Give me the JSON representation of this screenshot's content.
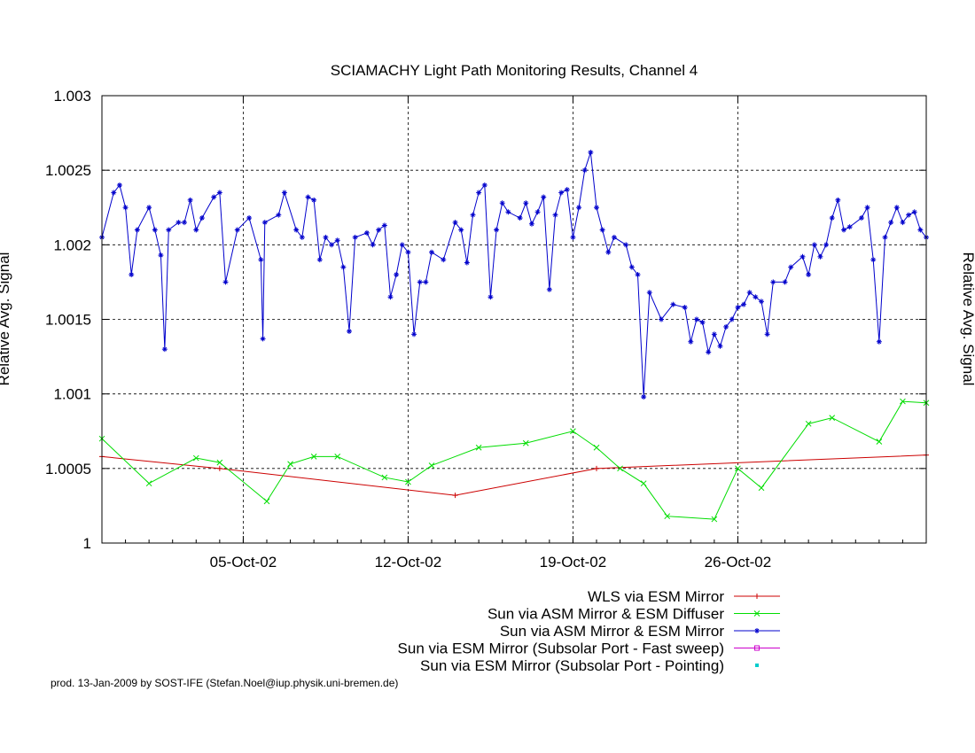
{
  "chart_data": {
    "type": "line",
    "title": "SCIAMACHY Light Path Monitoring Results, Channel 4",
    "ylabel_left": "Relative Avg. Signal",
    "ylabel_right": "Relative Avg. Signal",
    "ylim": [
      1.0,
      1.003
    ],
    "yticks": [
      {
        "value": 1.0,
        "label": "1"
      },
      {
        "value": 1.0005,
        "label": "1.0005"
      },
      {
        "value": 1.001,
        "label": "1.001"
      },
      {
        "value": 1.0015,
        "label": "1.0015"
      },
      {
        "value": 1.002,
        "label": "1.002"
      },
      {
        "value": 1.0025,
        "label": "1.0025"
      },
      {
        "value": 1.003,
        "label": "1.003"
      }
    ],
    "xlim": [
      "2002-09-29",
      "2002-11-03"
    ],
    "xticks": [
      {
        "date": "2002-10-05",
        "label": "05-Oct-02"
      },
      {
        "date": "2002-10-12",
        "label": "12-Oct-02"
      },
      {
        "date": "2002-10-19",
        "label": "19-Oct-02"
      },
      {
        "date": "2002-10-26",
        "label": "26-Oct-02"
      }
    ],
    "grid": true,
    "legend_position": "bottom-right",
    "series": [
      {
        "name": "WLS via ESM Mirror",
        "color": "#cc0000",
        "marker": "plus",
        "points": [
          [
            "2002-09-29",
            1.00058
          ],
          [
            "2002-10-04",
            1.0005
          ],
          [
            "2002-10-14",
            1.00032
          ],
          [
            "2002-10-20",
            1.0005
          ],
          [
            "2002-11-03",
            1.00059
          ]
        ]
      },
      {
        "name": "Sun via ASM Mirror & ESM Diffuser",
        "color": "#00dd00",
        "marker": "x",
        "points": [
          [
            "2002-09-29",
            1.0007
          ],
          [
            "2002-10-01",
            1.0004
          ],
          [
            "2002-10-03",
            1.00057
          ],
          [
            "2002-10-04",
            1.00054
          ],
          [
            "2002-10-06",
            1.00028
          ],
          [
            "2002-10-07",
            1.00053
          ],
          [
            "2002-10-08",
            1.00058
          ],
          [
            "2002-10-09",
            1.00058
          ],
          [
            "2002-10-11",
            1.00044
          ],
          [
            "2002-10-12",
            1.00041
          ],
          [
            "2002-10-13",
            1.00052
          ],
          [
            "2002-10-15",
            1.00064
          ],
          [
            "2002-10-17",
            1.00067
          ],
          [
            "2002-10-19",
            1.00075
          ],
          [
            "2002-10-20",
            1.00064
          ],
          [
            "2002-10-21",
            1.0005
          ],
          [
            "2002-10-22",
            1.0004
          ],
          [
            "2002-10-23",
            1.00018
          ],
          [
            "2002-10-25",
            1.00016
          ],
          [
            "2002-10-26",
            1.0005
          ],
          [
            "2002-10-27",
            1.00037
          ],
          [
            "2002-10-29",
            1.0008
          ],
          [
            "2002-10-30",
            1.00084
          ],
          [
            "2002-11-01",
            1.00068
          ],
          [
            "2002-11-02",
            1.00095
          ],
          [
            "2002-11-03",
            1.00094
          ]
        ]
      },
      {
        "name": "Sun via ASM Mirror & ESM Mirror",
        "color": "#0000cc",
        "marker": "star",
        "points": [
          [
            "2002-09-29 00:00",
            1.00205
          ],
          [
            "2002-09-29 12:00",
            1.00235
          ],
          [
            "2002-09-29 18:00",
            1.0024
          ],
          [
            "2002-09-30 00:00",
            1.00225
          ],
          [
            "2002-09-30 06:00",
            1.0018
          ],
          [
            "2002-09-30 12:00",
            1.0021
          ],
          [
            "2002-10-01 00:00",
            1.00225
          ],
          [
            "2002-10-01 06:00",
            1.0021
          ],
          [
            "2002-10-01 12:00",
            1.00193
          ],
          [
            "2002-10-01 16:00",
            1.0013
          ],
          [
            "2002-10-01 20:00",
            1.0021
          ],
          [
            "2002-10-02 06:00",
            1.00215
          ],
          [
            "2002-10-02 12:00",
            1.00215
          ],
          [
            "2002-10-02 18:00",
            1.0023
          ],
          [
            "2002-10-03 00:00",
            1.0021
          ],
          [
            "2002-10-03 06:00",
            1.00218
          ],
          [
            "2002-10-03 18:00",
            1.00232
          ],
          [
            "2002-10-04 00:00",
            1.00235
          ],
          [
            "2002-10-04 06:00",
            1.00175
          ],
          [
            "2002-10-04 18:00",
            1.0021
          ],
          [
            "2002-10-05 06:00",
            1.00218
          ],
          [
            "2002-10-05 18:00",
            1.0019
          ],
          [
            "2002-10-05 20:00",
            1.00137
          ],
          [
            "2002-10-05 22:00",
            1.00215
          ],
          [
            "2002-10-06 12:00",
            1.0022
          ],
          [
            "2002-10-06 18:00",
            1.00235
          ],
          [
            "2002-10-07 06:00",
            1.0021
          ],
          [
            "2002-10-07 12:00",
            1.00205
          ],
          [
            "2002-10-07 18:00",
            1.00232
          ],
          [
            "2002-10-08 00:00",
            1.0023
          ],
          [
            "2002-10-08 06:00",
            1.0019
          ],
          [
            "2002-10-08 12:00",
            1.00205
          ],
          [
            "2002-10-08 18:00",
            1.002
          ],
          [
            "2002-10-09 00:00",
            1.00203
          ],
          [
            "2002-10-09 06:00",
            1.00185
          ],
          [
            "2002-10-09 12:00",
            1.00142
          ],
          [
            "2002-10-09 18:00",
            1.00205
          ],
          [
            "2002-10-10 06:00",
            1.00208
          ],
          [
            "2002-10-10 12:00",
            1.002
          ],
          [
            "2002-10-10 18:00",
            1.0021
          ],
          [
            "2002-10-11 00:00",
            1.00213
          ],
          [
            "2002-10-11 06:00",
            1.00165
          ],
          [
            "2002-10-11 12:00",
            1.0018
          ],
          [
            "2002-10-11 18:00",
            1.002
          ],
          [
            "2002-10-12 00:00",
            1.00195
          ],
          [
            "2002-10-12 06:00",
            1.0014
          ],
          [
            "2002-10-12 12:00",
            1.00175
          ],
          [
            "2002-10-12 18:00",
            1.00175
          ],
          [
            "2002-10-13 00:00",
            1.00195
          ],
          [
            "2002-10-13 12:00",
            1.0019
          ],
          [
            "2002-10-14 00:00",
            1.00215
          ],
          [
            "2002-10-14 06:00",
            1.0021
          ],
          [
            "2002-10-14 12:00",
            1.00188
          ],
          [
            "2002-10-14 18:00",
            1.0022
          ],
          [
            "2002-10-15 00:00",
            1.00235
          ],
          [
            "2002-10-15 06:00",
            1.0024
          ],
          [
            "2002-10-15 12:00",
            1.00165
          ],
          [
            "2002-10-15 18:00",
            1.0021
          ],
          [
            "2002-10-16 00:00",
            1.00228
          ],
          [
            "2002-10-16 06:00",
            1.00222
          ],
          [
            "2002-10-16 18:00",
            1.00218
          ],
          [
            "2002-10-17 00:00",
            1.00228
          ],
          [
            "2002-10-17 06:00",
            1.00214
          ],
          [
            "2002-10-17 12:00",
            1.00222
          ],
          [
            "2002-10-17 18:00",
            1.00232
          ],
          [
            "2002-10-18 00:00",
            1.0017
          ],
          [
            "2002-10-18 06:00",
            1.0022
          ],
          [
            "2002-10-18 12:00",
            1.00235
          ],
          [
            "2002-10-18 18:00",
            1.00237
          ],
          [
            "2002-10-19 00:00",
            1.00205
          ],
          [
            "2002-10-19 06:00",
            1.00225
          ],
          [
            "2002-10-19 12:00",
            1.0025
          ],
          [
            "2002-10-19 18:00",
            1.00262
          ],
          [
            "2002-10-20 00:00",
            1.00225
          ],
          [
            "2002-10-20 06:00",
            1.0021
          ],
          [
            "2002-10-20 12:00",
            1.00195
          ],
          [
            "2002-10-20 18:00",
            1.00205
          ],
          [
            "2002-10-21 06:00",
            1.002
          ],
          [
            "2002-10-21 12:00",
            1.00185
          ],
          [
            "2002-10-21 18:00",
            1.0018
          ],
          [
            "2002-10-22 00:00",
            1.00098
          ],
          [
            "2002-10-22 06:00",
            1.00168
          ],
          [
            "2002-10-22 18:00",
            1.0015
          ],
          [
            "2002-10-23 06:00",
            1.0016
          ],
          [
            "2002-10-23 18:00",
            1.00158
          ],
          [
            "2002-10-24 00:00",
            1.00135
          ],
          [
            "2002-10-24 06:00",
            1.0015
          ],
          [
            "2002-10-24 12:00",
            1.00148
          ],
          [
            "2002-10-24 18:00",
            1.00128
          ],
          [
            "2002-10-25 00:00",
            1.0014
          ],
          [
            "2002-10-25 06:00",
            1.00132
          ],
          [
            "2002-10-25 12:00",
            1.00145
          ],
          [
            "2002-10-25 18:00",
            1.0015
          ],
          [
            "2002-10-26 00:00",
            1.00158
          ],
          [
            "2002-10-26 06:00",
            1.0016
          ],
          [
            "2002-10-26 12:00",
            1.00168
          ],
          [
            "2002-10-26 18:00",
            1.00165
          ],
          [
            "2002-10-27 00:00",
            1.00162
          ],
          [
            "2002-10-27 06:00",
            1.0014
          ],
          [
            "2002-10-27 12:00",
            1.00175
          ],
          [
            "2002-10-28 00:00",
            1.00175
          ],
          [
            "2002-10-28 06:00",
            1.00185
          ],
          [
            "2002-10-28 18:00",
            1.00192
          ],
          [
            "2002-10-29 00:00",
            1.0018
          ],
          [
            "2002-10-29 06:00",
            1.002
          ],
          [
            "2002-10-29 12:00",
            1.00192
          ],
          [
            "2002-10-29 18:00",
            1.002
          ],
          [
            "2002-10-30 00:00",
            1.00218
          ],
          [
            "2002-10-30 06:00",
            1.0023
          ],
          [
            "2002-10-30 12:00",
            1.0021
          ],
          [
            "2002-10-30 18:00",
            1.00212
          ],
          [
            "2002-10-31 06:00",
            1.00218
          ],
          [
            "2002-10-31 12:00",
            1.00225
          ],
          [
            "2002-10-31 18:00",
            1.0019
          ],
          [
            "2002-11-01 00:00",
            1.00135
          ],
          [
            "2002-11-01 06:00",
            1.00205
          ],
          [
            "2002-11-01 12:00",
            1.00215
          ],
          [
            "2002-11-01 18:00",
            1.00225
          ],
          [
            "2002-11-02 00:00",
            1.00215
          ],
          [
            "2002-11-02 06:00",
            1.0022
          ],
          [
            "2002-11-02 12:00",
            1.00222
          ],
          [
            "2002-11-02 18:00",
            1.0021
          ],
          [
            "2002-11-03 00:00",
            1.00205
          ]
        ]
      },
      {
        "name": "Sun via ESM Mirror (Subsolar Port - Fast sweep)",
        "color": "#cc00cc",
        "marker": "square",
        "points": []
      },
      {
        "name": "Sun via ESM Mirror (Subsolar Port - Pointing)",
        "color": "#00cccc",
        "marker": "dot",
        "points": []
      }
    ]
  },
  "footer": "prod. 13-Jan-2009 by SOST-IFE (Stefan.Noel@iup.physik.uni-bremen.de)"
}
